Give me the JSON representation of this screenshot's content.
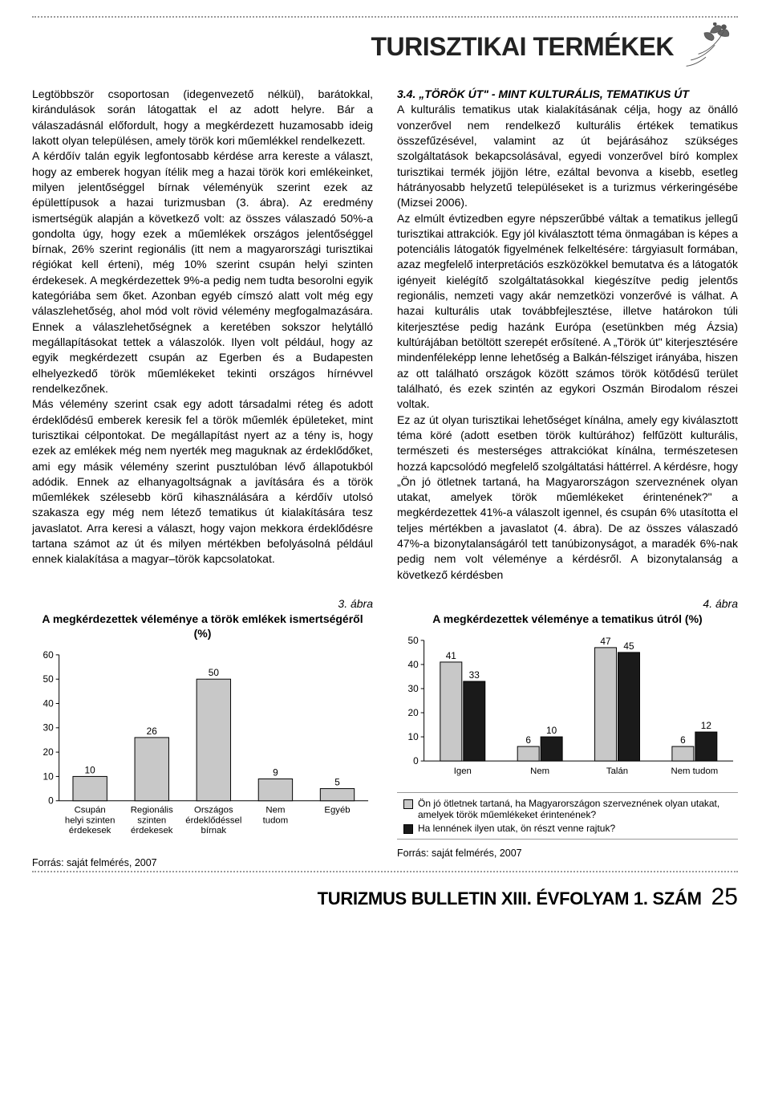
{
  "header": {
    "section_title": "TURISZTIKAI TERMÉKEK"
  },
  "left_col": {
    "body": "Legtöbbször csoportosan (idegenvezető nélkül), barátokkal, kirándulások során látogattak el az adott helyre. Bár a válaszadásnál előfordult, hogy a megkérdezett huzamosabb ideig lakott olyan településen, amely török kori műemlékkel rendelkezett.\n   A kérdőív talán egyik legfontosabb kérdése arra kereste a választ, hogy az emberek hogyan ítélik meg a hazai török kori emlékeinket, milyen jelentőséggel bírnak véleményük szerint ezek az épülettípusok a hazai turizmusban (3. ábra). Az eredmény ismertségük alapján a következő volt: az összes válaszadó 50%-a gondolta úgy, hogy ezek a műemlékek országos jelentőséggel bírnak, 26% szerint regionális (itt nem a magyarországi turisztikai régiókat kell érteni), még 10% szerint csupán helyi szinten érdekesek. A megkérdezettek 9%-a pedig nem tudta besorolni egyik kategóriába sem őket. Azonban egyéb címszó alatt volt még egy válaszlehetőség, ahol mód volt rövid vélemény megfogalmazására. Ennek a válaszlehetőségnek a keretében sokszor helytálló megállapításokat tettek a válaszolók. Ilyen volt például, hogy az egyik megkérdezett csupán az Egerben és a Budapesten elhelyezkedő török műemlékeket tekinti országos hírnévvel rendelkezőnek.\n   Más vélemény szerint csak egy adott társadalmi réteg és adott érdeklődésű emberek keresik fel a török műemlék épületeket, mint turisztikai célpontokat. De megállapítást nyert az a tény is, hogy ezek az emlékek még nem nyerték meg maguknak az érdeklődőket, ami egy másik vélemény szerint pusztulóban lévő állapotukból adódik. Ennek az elhanyagoltságnak a javítására és a török műemlékek szélesebb körű kihasználására a kérdőív utolsó szakasza egy még nem létező tematikus út kialakítására tesz javaslatot. Arra keresi a választ, hogy vajon mekkora érdeklődésre tartana számot az út és milyen mértékben befolyásolná például ennek kialakítása a magyar–török kapcsolatokat."
  },
  "right_col": {
    "heading": "3.4. „TÖRÖK ÚT\" - MINT KULTURÁLIS, TEMATIKUS ÚT",
    "body": "A kulturális tematikus utak kialakításának célja, hogy az önálló vonzerővel nem rendelkező kulturális értékek tematikus összefűzésével, valamint az út bejárásához szükséges szolgáltatások bekapcsolásával, egyedi vonzerővel bíró komplex turisztikai termék jöjjön létre, ezáltal bevonva a kisebb, esetleg hátrányosabb helyzetű településeket is a turizmus vérkeringésébe (Mizsei 2006).\n   Az elmúlt évtizedben egyre népszerűbbé váltak a tematikus jellegű turisztikai attrakciók. Egy jól kiválasztott téma önmagában is képes a potenciális látogatók figyelmének felkeltésére: tárgyiasult formában, azaz megfelelő interpretációs eszközökkel bemutatva és a látogatók igényeit kielégítő szolgáltatásokkal kiegészítve pedig jelentős regionális, nemzeti vagy akár nemzetközi vonzerővé is válhat. A hazai kulturális utak továbbfejlesztése, illetve határokon túli kiterjesztése pedig hazánk Európa (esetünkben még Ázsia) kultúrájában betöltött szerepét erősítené. A „Török út\" kiterjesztésére mindenféleképp lenne lehetőség a Balkán-félsziget irányába, hiszen az ott található országok között számos török kötődésű terület található, és ezek szintén az egykori Oszmán Birodalom részei voltak.\n   Ez az út olyan turisztikai lehetőséget kínálna, amely egy kiválasztott téma köré (adott esetben török kultúrához) felfűzött kulturális, természeti és mesterséges attrakciókat kínálna, természetesen hozzá kapcsolódó megfelelő szolgáltatási háttérrel. A kérdésre, hogy „Ön jó ötletnek tartaná, ha Magyarországon szerveznének olyan utakat, amelyek török műemlékeket érintenének?\" a megkérdezettek 41%-a válaszolt igennel, és csupán 6% utasította el teljes mértékben a javaslatot (4. ábra). De az összes válaszadó 47%-a bizonytalanságáról tett tanúbizonyságot, a maradék 6%-nak pedig nem volt véleménye a kérdésről. A bizonytalanság a következő kérdésben"
  },
  "chart3": {
    "fig_label": "3. ábra",
    "title": "A megkérdezettek véleménye a török emlékek ismertségéről (%)",
    "ymax": 60,
    "ystep": 10,
    "categories": [
      {
        "lines": [
          "Csupán",
          "helyi szinten",
          "érdekesek"
        ],
        "value": 10
      },
      {
        "lines": [
          "Regionális",
          "szinten",
          "érdekesek"
        ],
        "value": 26
      },
      {
        "lines": [
          "Országos",
          "érdeklődéssel",
          "bírnak"
        ],
        "value": 50
      },
      {
        "lines": [
          "Nem",
          "tudom"
        ],
        "value": 9
      },
      {
        "lines": [
          "Egyéb"
        ],
        "value": 5
      }
    ],
    "bar_color": "#c8c8c8",
    "source": "Forrás: saját felmérés, 2007"
  },
  "chart4": {
    "fig_label": "4. ábra",
    "title": "A megkérdezettek véleménye a tematikus útról (%)",
    "ymax": 50,
    "ystep": 10,
    "categories": [
      {
        "label": "Igen",
        "a": 41,
        "b": 33
      },
      {
        "label": "Nem",
        "a": 6,
        "b": 10
      },
      {
        "label": "Talán",
        "a": 47,
        "b": 45
      },
      {
        "label": "Nem tudom",
        "a": 6,
        "b": 12
      }
    ],
    "legend": {
      "a": "Ön jó ötletnek tartaná, ha Magyarországon szerveznének olyan utakat, amelyek török műemlékeket érintenének?",
      "b": "Ha lennének ilyen utak, ön részt venne rajtuk?"
    },
    "color_a": "#c8c8c8",
    "color_b": "#1a1a1a",
    "source": "Forrás: saját felmérés, 2007"
  },
  "footer": {
    "journal": "TURIZMUS BULLETIN XIII. ÉVFOLYAM 1. SZÁM",
    "page": "25"
  }
}
